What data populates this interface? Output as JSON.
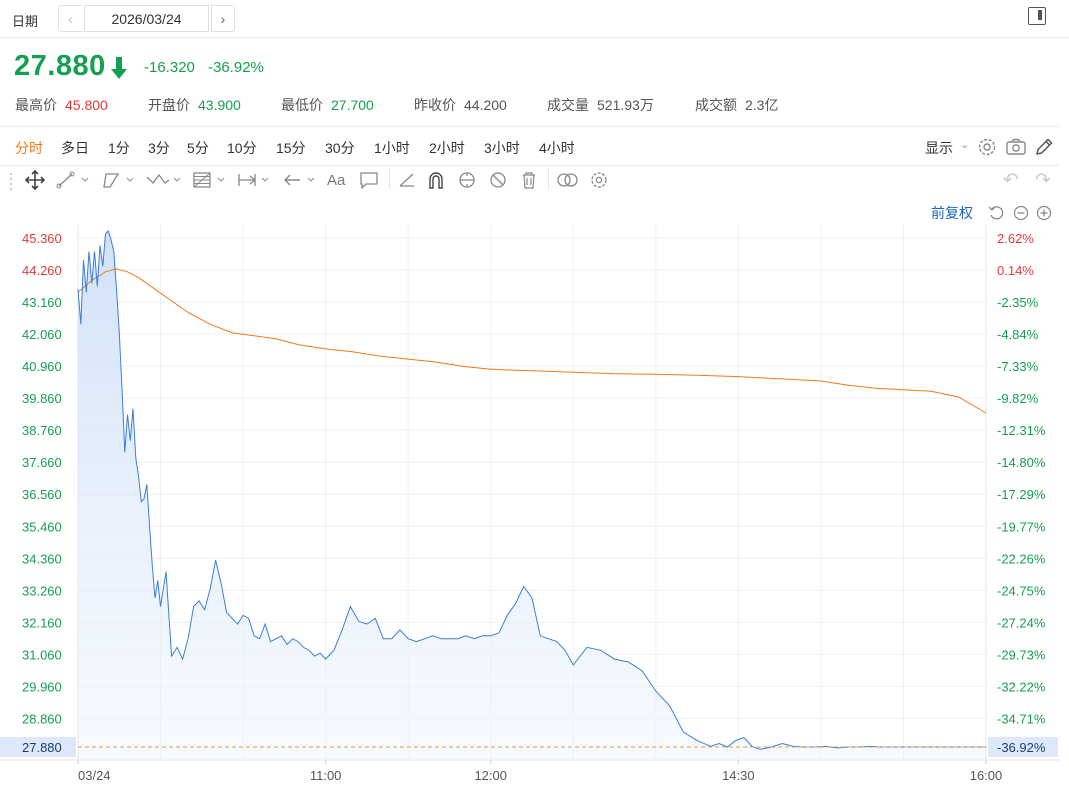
{
  "date_bar": {
    "label": "日期",
    "prev_icon": "‹",
    "date": "2026/03/24",
    "next_icon": "›",
    "panel_icon": "panel-toggle-icon"
  },
  "quote": {
    "price": "27.880",
    "arrow_icon": "arrow-down-icon",
    "change": "-16.320",
    "change_pct": "-36.92%",
    "stats": [
      {
        "label": "最高价",
        "value": "45.800",
        "color": "#e33a3a"
      },
      {
        "label": "开盘价",
        "value": "43.900",
        "color": "#14a050"
      },
      {
        "label": "最低价",
        "value": "27.700",
        "color": "#14a050"
      },
      {
        "label": "昨收价",
        "value": "44.200",
        "color": "#555555"
      },
      {
        "label": "成交量",
        "value": "521.93万",
        "color": "#555555"
      },
      {
        "label": "成交额",
        "value": "2.3亿",
        "color": "#555555"
      }
    ]
  },
  "tabs": [
    "分时",
    "多日",
    "1分",
    "3分",
    "5分",
    "10分",
    "15分",
    "30分",
    "1小时",
    "2小时",
    "3小时",
    "4小时"
  ],
  "active_tab": "分时",
  "toolbar": {
    "show_label": "显示",
    "show_caret": "⌄",
    "font_tool": "Aa",
    "fq_label": "前复权",
    "undo_icon": "↶",
    "redo_icon": "↷"
  },
  "colors": {
    "up": "#e33a3a",
    "down": "#14a050",
    "price_line": "#3a7fd5",
    "avg_line": "#f07a1a",
    "active_tab": "#f07a1a",
    "link": "#1a66c2"
  },
  "chart_data": {
    "type": "area",
    "y_ticks": [
      "45.360",
      "44.260",
      "43.160",
      "42.060",
      "40.960",
      "39.860",
      "38.760",
      "37.660",
      "36.560",
      "35.460",
      "34.360",
      "33.260",
      "32.160",
      "31.060",
      "29.960",
      "28.860",
      "27.880"
    ],
    "y_tick_values": [
      45.36,
      44.26,
      43.16,
      42.06,
      40.96,
      39.86,
      38.76,
      37.66,
      36.56,
      35.46,
      34.36,
      33.26,
      32.16,
      31.06,
      29.96,
      28.86,
      27.88
    ],
    "pct_ticks": [
      "2.62%",
      "0.14%",
      "-2.35%",
      "-4.84%",
      "-7.33%",
      "-9.82%",
      "-12.31%",
      "-14.80%",
      "-17.29%",
      "-19.77%",
      "-22.26%",
      "-24.75%",
      "-27.24%",
      "-29.73%",
      "-32.22%",
      "-34.71%",
      "-36.92%"
    ],
    "x_ticks": [
      "03/24",
      "11:00",
      "12:00",
      "14:30",
      "16:00"
    ],
    "x_tick_minutes": [
      0,
      90,
      150,
      240,
      330
    ],
    "current_price": 27.88,
    "prev_close": 44.2,
    "ylim": [
      27.5,
      45.8
    ],
    "series": [
      {
        "key": "price",
        "minutes": [
          0,
          1,
          2,
          3,
          4,
          5,
          6,
          7,
          8,
          9,
          10,
          11,
          12,
          13,
          14,
          15,
          16,
          17,
          18,
          19,
          20,
          21,
          22,
          23,
          24,
          25,
          26,
          27,
          28,
          29,
          30,
          32,
          34,
          36,
          38,
          40,
          42,
          44,
          46,
          48,
          50,
          52,
          54,
          56,
          58,
          60,
          62,
          64,
          66,
          68,
          70,
          72,
          74,
          76,
          78,
          80,
          82,
          84,
          86,
          88,
          90,
          93,
          96,
          99,
          102,
          105,
          108,
          111,
          114,
          117,
          120,
          123,
          126,
          129,
          132,
          135,
          138,
          141,
          144,
          147,
          150,
          153,
          156,
          159,
          162,
          165,
          168,
          171,
          174,
          177,
          180,
          185,
          190,
          195,
          200,
          205,
          210,
          215,
          220,
          225,
          230,
          233,
          236,
          239,
          242,
          245,
          248,
          252,
          256,
          260,
          264,
          268,
          272,
          276,
          280,
          284,
          288,
          292,
          296,
          300,
          303,
          306,
          309,
          312,
          315,
          318,
          321,
          324,
          327,
          330
        ],
        "values": [
          43.6,
          42.4,
          44.6,
          43.5,
          44.9,
          43.8,
          44.9,
          43.7,
          45.1,
          44.4,
          45.5,
          45.6,
          45.3,
          44.9,
          43.6,
          42.1,
          40.2,
          38.0,
          39.3,
          38.4,
          39.5,
          37.8,
          37.2,
          36.3,
          36.4,
          36.9,
          35.5,
          34.1,
          33.0,
          33.6,
          32.7,
          33.9,
          31.0,
          31.3,
          30.9,
          31.6,
          32.7,
          32.9,
          32.6,
          33.3,
          34.3,
          33.5,
          32.5,
          32.3,
          32.1,
          32.4,
          32.3,
          31.7,
          31.6,
          32.1,
          31.5,
          31.6,
          31.7,
          31.4,
          31.6,
          31.5,
          31.3,
          31.2,
          31.0,
          31.1,
          30.9,
          31.2,
          31.9,
          32.7,
          32.2,
          32.1,
          32.3,
          31.6,
          31.6,
          31.9,
          31.6,
          31.5,
          31.6,
          31.7,
          31.6,
          31.6,
          31.6,
          31.7,
          31.6,
          31.7,
          31.7,
          31.8,
          32.4,
          32.8,
          33.4,
          33.0,
          31.7,
          31.6,
          31.5,
          31.2,
          30.7,
          31.3,
          31.2,
          30.9,
          30.8,
          30.5,
          29.8,
          29.3,
          28.4,
          28.1,
          27.9,
          28.0,
          27.88,
          28.1,
          28.2,
          27.9,
          27.8,
          27.88,
          28.0,
          27.9,
          27.88,
          27.88,
          27.9,
          27.85,
          27.88,
          27.88,
          27.9,
          27.88,
          27.88,
          27.88,
          27.88,
          27.88,
          27.88,
          27.88,
          27.88,
          27.88,
          27.88,
          27.88,
          27.88,
          27.88
        ]
      },
      {
        "key": "average",
        "minutes": [
          0,
          5,
          10,
          14,
          18,
          22,
          28,
          34,
          40,
          48,
          56,
          64,
          72,
          80,
          90,
          100,
          110,
          120,
          130,
          140,
          150,
          165,
          180,
          195,
          210,
          225,
          240,
          250,
          260,
          270,
          280,
          290,
          300,
          310,
          320,
          330
        ],
        "values": [
          43.5,
          43.9,
          44.2,
          44.3,
          44.2,
          44.0,
          43.6,
          43.2,
          42.8,
          42.4,
          42.1,
          42.0,
          41.9,
          41.7,
          41.55,
          41.45,
          41.3,
          41.2,
          41.1,
          40.95,
          40.85,
          40.8,
          40.75,
          40.7,
          40.68,
          40.65,
          40.6,
          40.55,
          40.5,
          40.45,
          40.3,
          40.2,
          40.15,
          40.1,
          39.9,
          39.35
        ]
      }
    ]
  }
}
